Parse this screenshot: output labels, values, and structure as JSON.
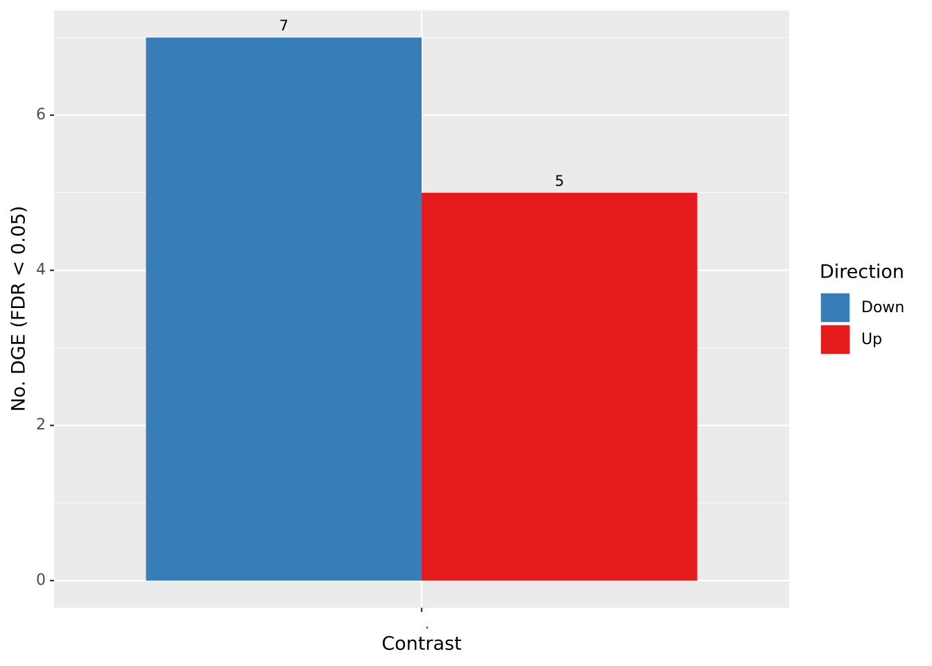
{
  "chart_data": {
    "type": "bar",
    "x_label": "Contrast",
    "y_label": "No. DGE (FDR < 0.05)",
    "categories": [
      "."
    ],
    "series": [
      {
        "name": "Down",
        "color": "#377eb8",
        "values": [
          7
        ]
      },
      {
        "name": "Up",
        "color": "#e41a1c",
        "values": [
          5
        ]
      }
    ],
    "ylim": [
      -0.35,
      7.35
    ],
    "yticks": [
      0,
      2,
      4,
      6
    ],
    "y_minor_ticks": [
      1,
      3,
      5,
      7
    ],
    "grid": true,
    "legend_title": "Direction",
    "legend_position": "right",
    "show_value_labels": true
  }
}
